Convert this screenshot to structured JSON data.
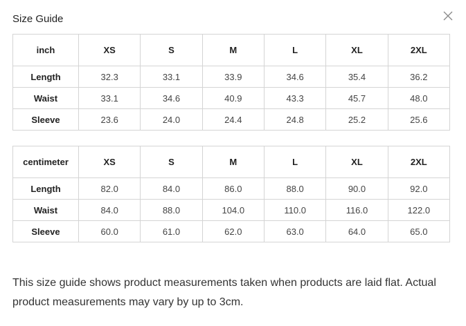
{
  "dialog": {
    "title": "Size Guide",
    "close_icon": "close-x-icon",
    "note": "This size guide shows product measurements taken when products are laid flat. Actual product measurements may vary by up to 3cm."
  },
  "tables": [
    {
      "unit": "inch",
      "sizes": [
        "XS",
        "S",
        "M",
        "L",
        "XL",
        "2XL"
      ],
      "rows": [
        {
          "label": "Length",
          "values": [
            "32.3",
            "33.1",
            "33.9",
            "34.6",
            "35.4",
            "36.2"
          ]
        },
        {
          "label": "Waist",
          "values": [
            "33.1",
            "34.6",
            "40.9",
            "43.3",
            "45.7",
            "48.0"
          ]
        },
        {
          "label": "Sleeve",
          "values": [
            "23.6",
            "24.0",
            "24.4",
            "24.8",
            "25.2",
            "25.6"
          ]
        }
      ]
    },
    {
      "unit": "centimeter",
      "sizes": [
        "XS",
        "S",
        "M",
        "L",
        "XL",
        "2XL"
      ],
      "rows": [
        {
          "label": "Length",
          "values": [
            "82.0",
            "84.0",
            "86.0",
            "88.0",
            "90.0",
            "92.0"
          ]
        },
        {
          "label": "Waist",
          "values": [
            "84.0",
            "88.0",
            "104.0",
            "110.0",
            "116.0",
            "122.0"
          ]
        },
        {
          "label": "Sleeve",
          "values": [
            "60.0",
            "61.0",
            "62.0",
            "63.0",
            "64.0",
            "65.0"
          ]
        }
      ]
    }
  ]
}
